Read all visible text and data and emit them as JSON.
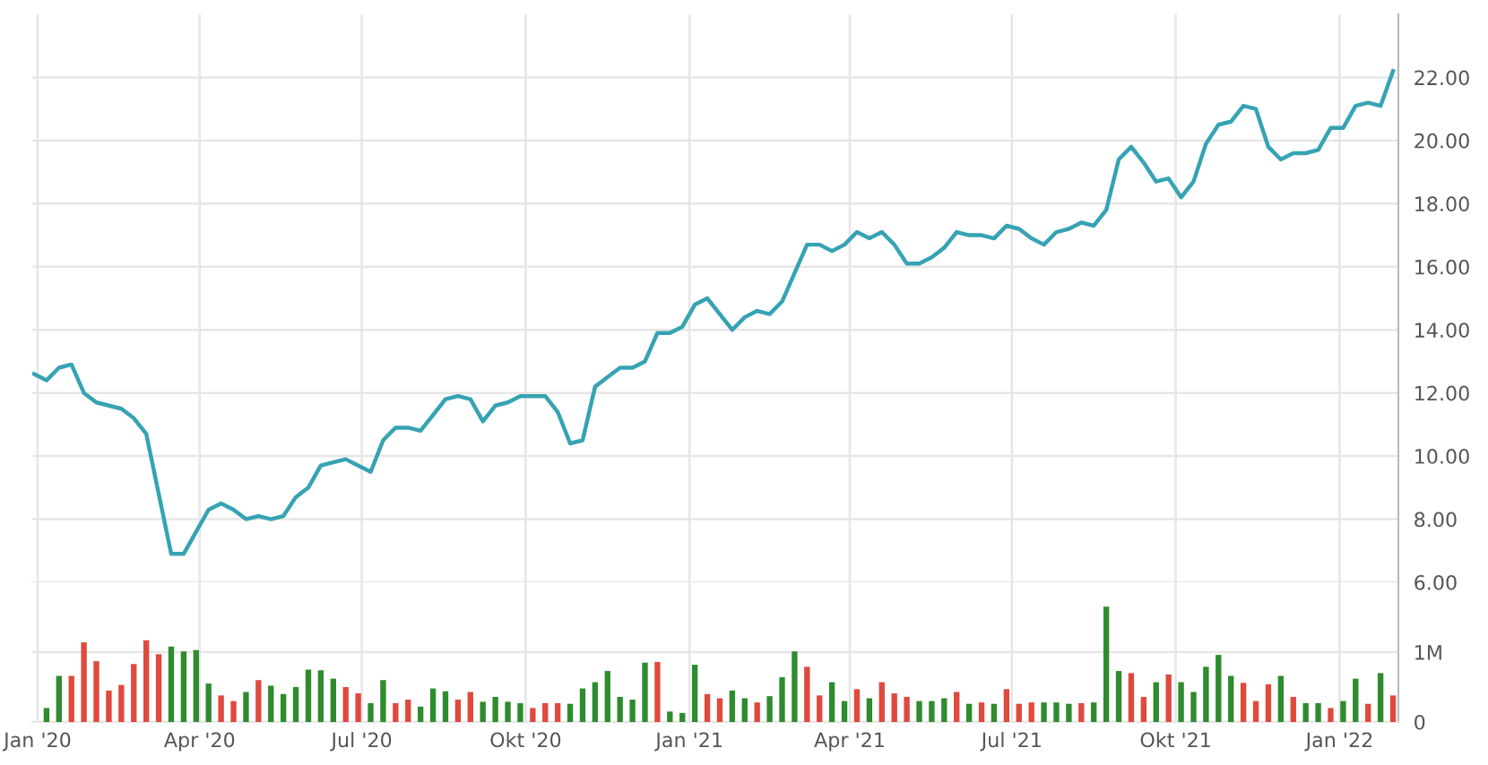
{
  "chart_data": [
    {
      "type": "line",
      "grid": true,
      "tick_labels": "y",
      "marker": "none",
      "line_style": "solid",
      "xlim": [
        "2019-12-29",
        "2022-02-03"
      ],
      "xticks": [
        {
          "value": "2020-01-01",
          "label": null
        },
        {
          "value": "2020-04-01",
          "label": null
        },
        {
          "value": "2020-07-01",
          "label": null
        },
        {
          "value": "2020-10-01",
          "label": null
        },
        {
          "value": "2021-01-01",
          "label": null
        },
        {
          "value": "2021-04-01",
          "label": null
        },
        {
          "value": "2021-07-01",
          "label": null
        },
        {
          "value": "2021-10-01",
          "label": null
        },
        {
          "value": "2022-01-01",
          "label": null
        }
      ],
      "ylim": [
        6,
        24
      ],
      "yticks": [
        {
          "value": 6,
          "label": "6.00"
        },
        {
          "value": 8,
          "label": "8.00"
        },
        {
          "value": 10,
          "label": "10.00"
        },
        {
          "value": 12,
          "label": "12.00"
        },
        {
          "value": 14,
          "label": "14.00"
        },
        {
          "value": 16,
          "label": "16.00"
        },
        {
          "value": 18,
          "label": "18.00"
        },
        {
          "value": 20,
          "label": "20.00"
        },
        {
          "value": 22,
          "label": "22.00"
        }
      ],
      "series": [
        {
          "color": "#35a3b3",
          "x": [
            "2019-12-30",
            "2020-01-06",
            "2020-01-13",
            "2020-01-20",
            "2020-01-27",
            "2020-02-03",
            "2020-02-10",
            "2020-02-17",
            "2020-02-24",
            "2020-03-02",
            "2020-03-16",
            "2020-03-23",
            "2020-03-30",
            "2020-04-06",
            "2020-04-13",
            "2020-04-20",
            "2020-04-27",
            "2020-05-04",
            "2020-05-11",
            "2020-05-18",
            "2020-05-25",
            "2020-06-01",
            "2020-06-08",
            "2020-06-15",
            "2020-06-22",
            "2020-06-29",
            "2020-07-06",
            "2020-07-13",
            "2020-07-20",
            "2020-07-27",
            "2020-08-03",
            "2020-08-10",
            "2020-08-17",
            "2020-08-24",
            "2020-08-31",
            "2020-09-07",
            "2020-09-14",
            "2020-09-21",
            "2020-09-28",
            "2020-10-05",
            "2020-10-12",
            "2020-10-19",
            "2020-10-26",
            "2020-11-02",
            "2020-11-09",
            "2020-11-16",
            "2020-11-23",
            "2020-11-30",
            "2020-12-07",
            "2020-12-14",
            "2020-12-21",
            "2020-12-28",
            "2021-01-04",
            "2021-01-11",
            "2021-01-18",
            "2021-01-25",
            "2021-02-01",
            "2021-02-08",
            "2021-02-15",
            "2021-02-22",
            "2021-03-01",
            "2021-03-08",
            "2021-03-15",
            "2021-03-22",
            "2021-03-29",
            "2021-04-05",
            "2021-04-12",
            "2021-04-19",
            "2021-04-26",
            "2021-05-03",
            "2021-05-10",
            "2021-05-17",
            "2021-05-24",
            "2021-05-31",
            "2021-06-07",
            "2021-06-14",
            "2021-06-21",
            "2021-06-28",
            "2021-07-05",
            "2021-07-12",
            "2021-07-19",
            "2021-07-26",
            "2021-08-02",
            "2021-08-09",
            "2021-08-16",
            "2021-08-23",
            "2021-08-30",
            "2021-09-06",
            "2021-09-13",
            "2021-09-20",
            "2021-09-27",
            "2021-10-04",
            "2021-10-11",
            "2021-10-18",
            "2021-10-25",
            "2021-11-01",
            "2021-11-08",
            "2021-11-15",
            "2021-11-22",
            "2021-11-29",
            "2021-12-06",
            "2021-12-13",
            "2021-12-20",
            "2021-12-27",
            "2022-01-03",
            "2022-01-10",
            "2022-01-17",
            "2022-01-24",
            "2022-01-31"
          ],
          "values": [
            12.6,
            12.4,
            12.8,
            12.9,
            12.0,
            11.7,
            11.6,
            11.5,
            11.2,
            10.7,
            6.9,
            6.9,
            7.6,
            8.3,
            8.5,
            8.3,
            8.0,
            8.1,
            8.0,
            8.1,
            8.7,
            9.0,
            9.7,
            9.8,
            9.9,
            9.7,
            9.5,
            10.5,
            10.9,
            10.9,
            10.8,
            11.3,
            11.8,
            11.9,
            11.8,
            11.1,
            11.6,
            11.7,
            11.9,
            11.9,
            11.9,
            11.4,
            10.4,
            10.5,
            12.2,
            12.5,
            12.8,
            12.8,
            13.0,
            13.9,
            13.9,
            14.1,
            14.8,
            15.0,
            14.5,
            14.0,
            14.4,
            14.6,
            14.5,
            14.9,
            15.8,
            16.7,
            16.7,
            16.5,
            16.7,
            17.1,
            16.9,
            17.1,
            16.7,
            16.1,
            16.1,
            16.3,
            16.6,
            17.1,
            17.0,
            17.0,
            16.9,
            17.3,
            17.2,
            16.9,
            16.7,
            17.1,
            17.2,
            17.4,
            17.3,
            17.8,
            19.4,
            19.8,
            19.3,
            18.7,
            18.8,
            18.2,
            18.7,
            19.9,
            20.5,
            20.6,
            21.1,
            21.0,
            19.8,
            19.4,
            19.6,
            19.6,
            19.7,
            20.4,
            20.4,
            21.1,
            21.2,
            21.1,
            22.2
          ]
        }
      ]
    },
    {
      "type": "bar",
      "grid": true,
      "xlim": [
        "2019-12-29",
        "2022-02-03"
      ],
      "xticks": [
        {
          "value": "2020-01-01",
          "label": "Jan '20"
        },
        {
          "value": "2020-04-01",
          "label": "Apr '20"
        },
        {
          "value": "2020-07-01",
          "label": "Jul '20"
        },
        {
          "value": "2020-10-01",
          "label": "Okt '20"
        },
        {
          "value": "2021-01-01",
          "label": "Jan '21"
        },
        {
          "value": "2021-04-01",
          "label": "Apr '21"
        },
        {
          "value": "2021-07-01",
          "label": "Jul '21"
        },
        {
          "value": "2021-10-01",
          "label": "Okt '21"
        },
        {
          "value": "2022-01-01",
          "label": "Jan '22"
        }
      ],
      "ylim": [
        0,
        2000000
      ],
      "yticks": [
        0,
        {
          "value": 1000000,
          "label": "1M"
        }
      ],
      "x": [
        "2020-01-06",
        "2020-01-13",
        "2020-01-20",
        "2020-01-27",
        "2020-02-03",
        "2020-02-10",
        "2020-02-17",
        "2020-02-24",
        "2020-03-02",
        "2020-03-09",
        "2020-03-16",
        "2020-03-23",
        "2020-03-30",
        "2020-04-06",
        "2020-04-13",
        "2020-04-20",
        "2020-04-27",
        "2020-05-04",
        "2020-05-11",
        "2020-05-18",
        "2020-05-25",
        "2020-06-01",
        "2020-06-08",
        "2020-06-15",
        "2020-06-22",
        "2020-06-29",
        "2020-07-06",
        "2020-07-13",
        "2020-07-20",
        "2020-07-27",
        "2020-08-03",
        "2020-08-10",
        "2020-08-17",
        "2020-08-24",
        "2020-08-31",
        "2020-09-07",
        "2020-09-14",
        "2020-09-21",
        "2020-09-28",
        "2020-10-05",
        "2020-10-12",
        "2020-10-19",
        "2020-10-26",
        "2020-11-02",
        "2020-11-09",
        "2020-11-16",
        "2020-11-23",
        "2020-11-30",
        "2020-12-07",
        "2020-12-14",
        "2020-12-21",
        "2020-12-28",
        "2021-01-04",
        "2021-01-11",
        "2021-01-18",
        "2021-01-25",
        "2021-02-01",
        "2021-02-08",
        "2021-02-15",
        "2021-02-22",
        "2021-03-01",
        "2021-03-08",
        "2021-03-15",
        "2021-03-22",
        "2021-03-29",
        "2021-04-05",
        "2021-04-12",
        "2021-04-19",
        "2021-04-26",
        "2021-05-03",
        "2021-05-10",
        "2021-05-17",
        "2021-05-24",
        "2021-05-31",
        "2021-06-07",
        "2021-06-14",
        "2021-06-21",
        "2021-06-28",
        "2021-07-05",
        "2021-07-12",
        "2021-07-19",
        "2021-07-26",
        "2021-08-02",
        "2021-08-09",
        "2021-08-16",
        "2021-08-23",
        "2021-08-30",
        "2021-09-06",
        "2021-09-13",
        "2021-09-20",
        "2021-09-27",
        "2021-10-04",
        "2021-10-11",
        "2021-10-18",
        "2021-10-25",
        "2021-11-01",
        "2021-11-08",
        "2021-11-15",
        "2021-11-22",
        "2021-11-29",
        "2021-12-06",
        "2021-12-13",
        "2021-12-20",
        "2021-12-27",
        "2022-01-03",
        "2022-01-10",
        "2022-01-17",
        "2022-01-24",
        "2022-01-31"
      ],
      "values": [
        200000,
        660000,
        660000,
        1140000,
        870000,
        450000,
        530000,
        830000,
        1170000,
        970000,
        1080000,
        1010000,
        1030000,
        550000,
        380000,
        300000,
        430000,
        600000,
        520000,
        400000,
        500000,
        750000,
        740000,
        620000,
        500000,
        410000,
        270000,
        600000,
        270000,
        320000,
        220000,
        480000,
        440000,
        320000,
        430000,
        290000,
        360000,
        290000,
        270000,
        200000,
        270000,
        270000,
        260000,
        480000,
        570000,
        730000,
        360000,
        320000,
        850000,
        860000,
        150000,
        130000,
        820000,
        400000,
        340000,
        450000,
        340000,
        280000,
        370000,
        640000,
        1010000,
        790000,
        380000,
        570000,
        300000,
        470000,
        340000,
        570000,
        410000,
        360000,
        300000,
        300000,
        340000,
        430000,
        260000,
        280000,
        260000,
        470000,
        260000,
        280000,
        280000,
        280000,
        260000,
        270000,
        280000,
        1650000,
        730000,
        700000,
        360000,
        570000,
        680000,
        570000,
        430000,
        790000,
        960000,
        660000,
        560000,
        300000,
        540000,
        660000,
        360000,
        270000,
        270000,
        200000,
        300000,
        620000,
        260000,
        700000,
        380000
      ],
      "colors": [
        "#2e8b2e",
        "#2e8b2e",
        "#e0493e",
        "#e0493e",
        "#e0493e",
        "#e0493e",
        "#e0493e",
        "#e0493e",
        "#e0493e",
        "#e0493e",
        "#2e8b2e",
        "#2e8b2e",
        "#2e8b2e",
        "#2e8b2e",
        "#e0493e",
        "#e0493e",
        "#2e8b2e",
        "#e0493e",
        "#2e8b2e",
        "#2e8b2e",
        "#2e8b2e",
        "#2e8b2e",
        "#2e8b2e",
        "#2e8b2e",
        "#e0493e",
        "#e0493e",
        "#2e8b2e",
        "#2e8b2e",
        "#e0493e",
        "#e0493e",
        "#2e8b2e",
        "#2e8b2e",
        "#2e8b2e",
        "#e0493e",
        "#e0493e",
        "#2e8b2e",
        "#2e8b2e",
        "#2e8b2e",
        "#2e8b2e",
        "#e0493e",
        "#e0493e",
        "#e0493e",
        "#2e8b2e",
        "#2e8b2e",
        "#2e8b2e",
        "#2e8b2e",
        "#2e8b2e",
        "#2e8b2e",
        "#2e8b2e",
        "#e0493e",
        "#2e8b2e",
        "#2e8b2e",
        "#2e8b2e",
        "#e0493e",
        "#e0493e",
        "#2e8b2e",
        "#2e8b2e",
        "#e0493e",
        "#2e8b2e",
        "#2e8b2e",
        "#2e8b2e",
        "#e0493e",
        "#e0493e",
        "#2e8b2e",
        "#2e8b2e",
        "#e0493e",
        "#2e8b2e",
        "#e0493e",
        "#e0493e",
        "#e0493e",
        "#2e8b2e",
        "#2e8b2e",
        "#2e8b2e",
        "#e0493e",
        "#2e8b2e",
        "#e0493e",
        "#2e8b2e",
        "#e0493e",
        "#e0493e",
        "#e0493e",
        "#2e8b2e",
        "#2e8b2e",
        "#2e8b2e",
        "#e0493e",
        "#2e8b2e",
        "#2e8b2e",
        "#2e8b2e",
        "#e0493e",
        "#e0493e",
        "#2e8b2e",
        "#e0493e",
        "#2e8b2e",
        "#2e8b2e",
        "#2e8b2e",
        "#2e8b2e",
        "#2e8b2e",
        "#e0493e",
        "#e0493e",
        "#e0493e",
        "#2e8b2e",
        "#e0493e",
        "#2e8b2e",
        "#2e8b2e",
        "#e0493e",
        "#2e8b2e",
        "#2e8b2e",
        "#e0493e",
        "#2e8b2e",
        "#e0493e"
      ]
    }
  ]
}
